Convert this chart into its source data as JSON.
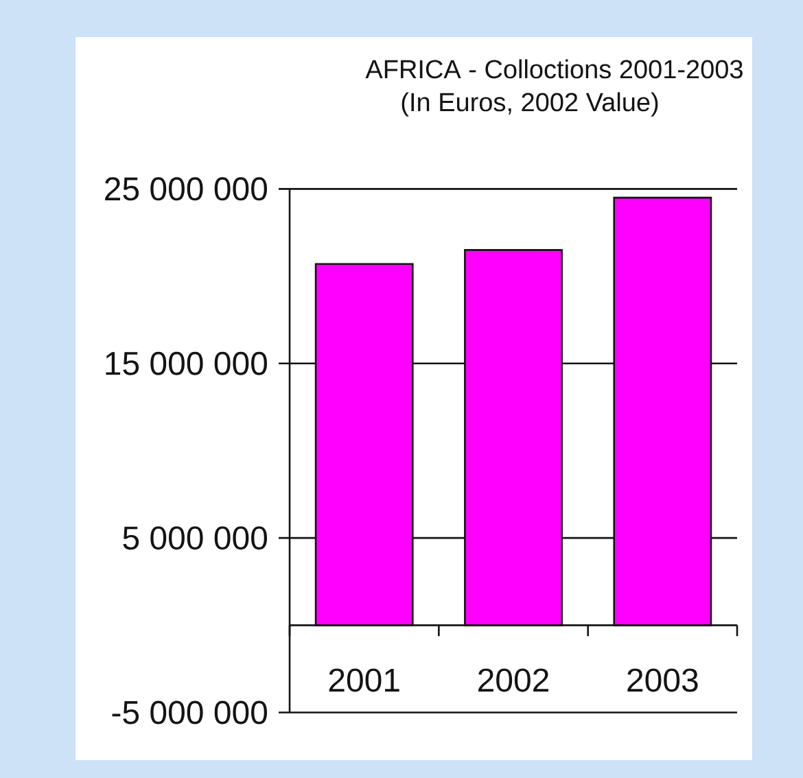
{
  "chart_data": {
    "type": "bar",
    "title": "AFRICA - Colloctions 2001-2003",
    "subtitle": "(In Euros, 2002 Value)",
    "categories": [
      "2001",
      "2002",
      "2003"
    ],
    "values": [
      20700000,
      21500000,
      24500000
    ],
    "color": "#ff00ff",
    "ylim": [
      -5000000,
      25000000
    ],
    "yticks": [
      {
        "value": -5000000,
        "label": "-5 000 000"
      },
      {
        "value": 5000000,
        "label": "5 000 000"
      },
      {
        "value": 15000000,
        "label": "15 000 000"
      },
      {
        "value": 25000000,
        "label": "25 000 000"
      }
    ],
    "grid": "y"
  }
}
